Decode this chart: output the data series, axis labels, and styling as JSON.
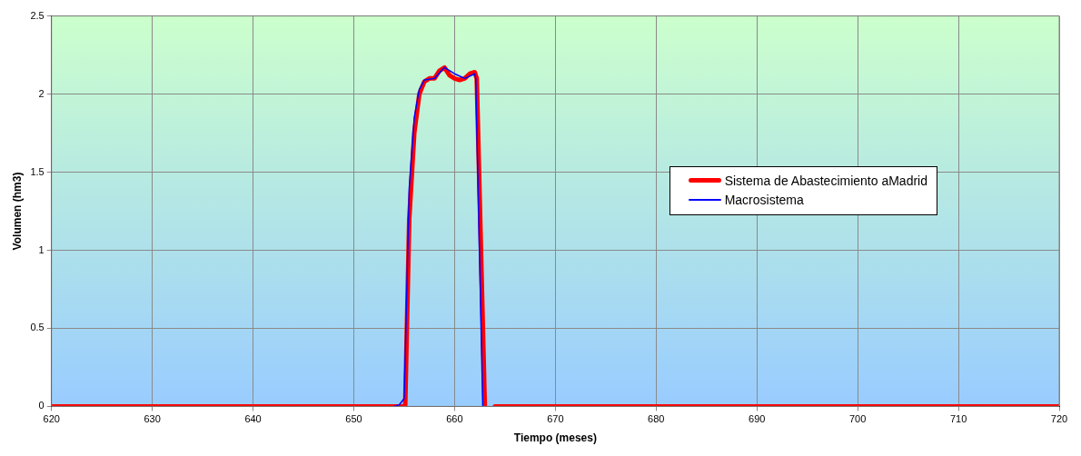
{
  "chart_data": {
    "type": "line",
    "xlabel": "Tiempo (meses)",
    "ylabel": "Volumen (hm3)",
    "xlim": [
      620,
      720
    ],
    "ylim": [
      0,
      2.5
    ],
    "xticks": [
      620,
      630,
      640,
      650,
      660,
      670,
      680,
      690,
      700,
      710,
      720
    ],
    "yticks": [
      0,
      0.5,
      1,
      1.5,
      2,
      2.5
    ],
    "grid": true,
    "legend": "right",
    "marker": "none",
    "line_style": "solid",
    "series": [
      {
        "name": "Sistema de Abastecimiento aMadrid",
        "color": "#ff0000",
        "x": [
          620,
          630,
          640,
          650,
          655,
          655.1,
          655.5,
          656,
          656.5,
          657,
          657.5,
          658,
          658.5,
          659,
          659.5,
          660,
          660.5,
          661,
          661.5,
          662,
          662.2,
          663,
          663.5,
          664,
          670,
          680,
          690,
          700,
          710,
          720
        ],
        "values": [
          0,
          0,
          0,
          0,
          0,
          0,
          1.2,
          1.75,
          2.0,
          2.08,
          2.1,
          2.1,
          2.15,
          2.17,
          2.12,
          2.1,
          2.09,
          2.1,
          2.13,
          2.14,
          2.1,
          0,
          null,
          0,
          0,
          0,
          0,
          0,
          0,
          0
        ]
      },
      {
        "name": "Macrosistema",
        "color": "#0000ff",
        "x": [
          654,
          654.5,
          655,
          655.5,
          656,
          656.5,
          657,
          658,
          659,
          660,
          661,
          662,
          662.1,
          662.8
        ],
        "values": [
          0,
          0.01,
          0.05,
          1.4,
          1.85,
          2.03,
          2.09,
          2.1,
          2.17,
          2.13,
          2.1,
          2.13,
          2.1,
          0
        ]
      }
    ]
  }
}
